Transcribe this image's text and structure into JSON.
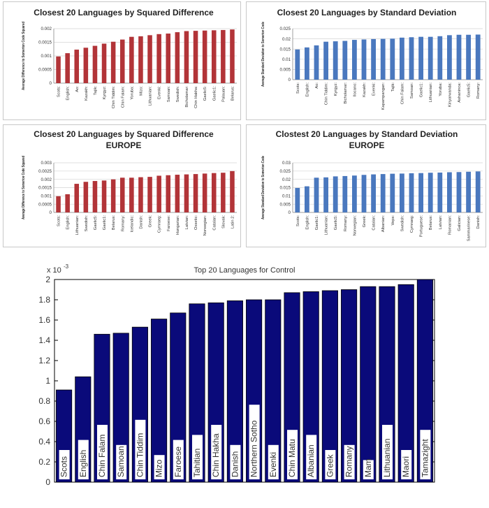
{
  "chart_data": [
    {
      "type": "bar",
      "title": "Closest 20 Languages by Squared Difference",
      "ylabel": "Average Difference to Somerton Code Squared",
      "ylim": [
        0,
        0.002
      ],
      "yticks": [
        "0",
        "0.0005",
        "0.001",
        "0.0015",
        "0.002"
      ],
      "ytick_values": [
        0,
        0.0005,
        0.001,
        0.0015,
        0.002
      ],
      "categories": [
        "Scots:",
        "English:",
        "Ao:",
        "Kazakh:",
        "Tajik:",
        "Kyrgyz:",
        "Chin Tiddim:",
        "Chin Falam:",
        "Yoruba:",
        "Mizo:",
        "Lithuanian:",
        "Evenki:",
        "Samoan:",
        "Swedish:",
        "Bicholamar:",
        "Chin Hakha:",
        "Gaelic5:",
        "Gaelic1:",
        "Palauan:",
        "Belarus:"
      ],
      "values": [
        0.00098,
        0.0011,
        0.00123,
        0.0013,
        0.00137,
        0.00145,
        0.00152,
        0.0016,
        0.0017,
        0.00172,
        0.00176,
        0.0018,
        0.00182,
        0.00187,
        0.00191,
        0.00192,
        0.00193,
        0.00194,
        0.00195,
        0.00197
      ],
      "color": "#b23438"
    },
    {
      "type": "bar",
      "title": "Closest 20 Languages by Standard Deviation",
      "ylabel": "Average Standard Deviation to Somerton Code",
      "ylim": [
        0,
        0.025
      ],
      "yticks": [
        "0",
        "0.005",
        "0.01",
        "0.015",
        "0.02",
        "0.025"
      ],
      "ytick_values": [
        0,
        0.005,
        0.01,
        0.015,
        0.02,
        0.025
      ],
      "categories": [
        "Scots:",
        "English:",
        "Ao:",
        "Chin Tiddim:",
        "Kyrgyz:",
        "Bicholamar:",
        "Ilocano:",
        "Kazakh:",
        "Evenki:",
        "Kapampangan:",
        "Tajik:",
        "Chin Falam:",
        "Samoan:",
        "Gaelic1:",
        "Lithuanian:",
        "Yoruba:",
        "Kinyarwanda:",
        "Ashaninca:",
        "Gaelic5:",
        "Romany:"
      ],
      "values": [
        0.0148,
        0.0158,
        0.0168,
        0.0186,
        0.0188,
        0.019,
        0.0195,
        0.0197,
        0.0199,
        0.02,
        0.0201,
        0.0206,
        0.0208,
        0.021,
        0.021,
        0.0213,
        0.0218,
        0.022,
        0.022,
        0.0221
      ],
      "color": "#4a78be"
    },
    {
      "type": "bar",
      "title": "Closest 20 Languages by Squared Difference",
      "subtitle": "EUROPE",
      "ylabel": "Average Difference to Somerton Code Squared",
      "ylim": [
        0,
        0.003
      ],
      "yticks": [
        "0",
        "0.0005",
        "0.001",
        "0.0015",
        "0.002",
        "0.0025",
        "0.003"
      ],
      "ytick_values": [
        0,
        0.0005,
        0.001,
        0.0015,
        0.002,
        0.0025,
        0.003
      ],
      "categories": [
        "Scots:",
        "English:",
        "Lithuanian:",
        "Swedish:",
        "Gaelic5:",
        "Gaelic1:",
        "Belarus:",
        "Romany:",
        "Icelandic:",
        "Danish:",
        "Greek:",
        "Cymraeg:",
        "Faroese:",
        "Hungarian:",
        "Latvian:",
        "Ossetic:",
        "Norwegian:",
        "Catalan:",
        "Slovak:",
        "Latin 2:"
      ],
      "values": [
        0.00098,
        0.0011,
        0.00173,
        0.00185,
        0.0019,
        0.00193,
        0.002,
        0.0021,
        0.0021,
        0.00213,
        0.00215,
        0.00222,
        0.00225,
        0.00228,
        0.0023,
        0.00232,
        0.00235,
        0.00238,
        0.0024,
        0.0025
      ],
      "color": "#b23438"
    },
    {
      "type": "bar",
      "title": "Clostest 20 Languages by Standard Deviation",
      "subtitle": "EUROPE",
      "ylabel": "Average Standard Deviation to Somerton Code",
      "ylim": [
        0,
        0.03
      ],
      "yticks": [
        "0",
        "0.005",
        "0.01",
        "0.015",
        "0.02",
        "0.025",
        "0.03"
      ],
      "ytick_values": [
        0,
        0.005,
        0.01,
        0.015,
        0.02,
        0.025,
        0.03
      ],
      "categories": [
        "Scots:",
        "English:",
        "Gaelic1:",
        "Lithuanian:",
        "Gaelic5:",
        "Romany:",
        "Norwegian:",
        "Greek:",
        "Catalan:",
        "Albanian:",
        "Veps:",
        "Swedish:",
        "Cymraeg:",
        "Portuguese:",
        "Belarus:",
        "Latvian:",
        "Romanian:",
        "Galician:",
        "Sammarinese:",
        "Danish:"
      ],
      "values": [
        0.0148,
        0.0158,
        0.021,
        0.0212,
        0.0218,
        0.022,
        0.0223,
        0.0227,
        0.023,
        0.0232,
        0.0234,
        0.0235,
        0.0237,
        0.0238,
        0.024,
        0.0241,
        0.0243,
        0.0244,
        0.0246,
        0.0248
      ],
      "color": "#4a78be"
    },
    {
      "type": "bar",
      "title": "Top 20 Languages for Control",
      "exponent_label": "x 10",
      "exponent_power": "-3",
      "ylim": [
        0,
        2
      ],
      "yticks": [
        "0",
        "0.2",
        "0.4",
        "0.6",
        "0.8",
        "1",
        "1.2",
        "1.4",
        "1.6",
        "1.8",
        "2"
      ],
      "ytick_values": [
        0,
        0.2,
        0.4,
        0.6,
        0.8,
        1,
        1.2,
        1.4,
        1.6,
        1.8,
        2
      ],
      "categories": [
        "Scots",
        "English",
        "Chin Falam",
        "Samoan",
        "Chin Tiddim",
        "Mizo",
        "Faroese",
        "Tahitian",
        "Chin Hakha",
        "Danish",
        "Northern Sotho",
        "Evenki",
        "Chin Matu",
        "Albanian",
        "Greek",
        "Romany",
        "Mam",
        "Lithuanian",
        "Maori",
        "Tamazight"
      ],
      "values": [
        0.91,
        1.04,
        1.46,
        1.47,
        1.53,
        1.61,
        1.67,
        1.76,
        1.77,
        1.79,
        1.8,
        1.8,
        1.87,
        1.88,
        1.89,
        1.9,
        1.93,
        1.93,
        1.95,
        2.0
      ],
      "color": "#0a0a7a"
    }
  ]
}
